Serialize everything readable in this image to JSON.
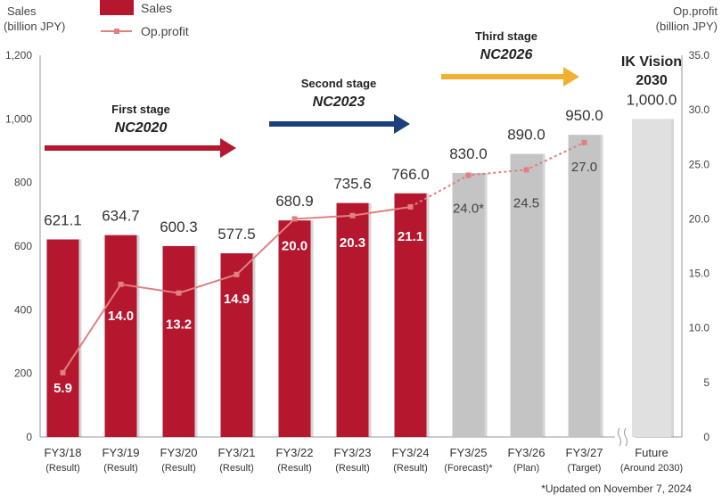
{
  "chart_data": {
    "type": "bar",
    "left_axis_label": [
      "Sales",
      "(billion JPY)"
    ],
    "right_axis_label": [
      "Op.profit",
      "(billion JPY)"
    ],
    "left_ylim": [
      0,
      1200
    ],
    "left_ticks": [
      "0",
      "200",
      "400",
      "600",
      "800",
      "1,000",
      "1,200"
    ],
    "right_ylim": [
      0,
      35
    ],
    "right_ticks": [
      "0",
      "5",
      "10.0",
      "15.0",
      "20.0",
      "25.0",
      "30.0",
      "35.0"
    ],
    "legend": {
      "sales": "Sales",
      "op_profit": "Op.profit"
    },
    "categories": [
      {
        "name": "FY3/18",
        "sub": "(Result)"
      },
      {
        "name": "FY3/19",
        "sub": "(Result)"
      },
      {
        "name": "FY3/20",
        "sub": "(Result)"
      },
      {
        "name": "FY3/21",
        "sub": "(Result)"
      },
      {
        "name": "FY3/22",
        "sub": "(Result)"
      },
      {
        "name": "FY3/23",
        "sub": "(Result)"
      },
      {
        "name": "FY3/24",
        "sub": "(Result)"
      },
      {
        "name": "FY3/25",
        "sub": "(Forecast)*"
      },
      {
        "name": "FY3/26",
        "sub": "(Plan)"
      },
      {
        "name": "FY3/27",
        "sub": "(Target)"
      },
      {
        "name": "Future",
        "sub": "(Around 2030)"
      }
    ],
    "sales": [
      621.1,
      634.7,
      600.3,
      577.5,
      680.9,
      735.6,
      766.0,
      830.0,
      890.0,
      950.0,
      1000.0
    ],
    "sales_labels": [
      "621.1",
      "634.7",
      "600.3",
      "577.5",
      "680.9",
      "735.6",
      "766.0",
      "830.0",
      "890.0",
      "950.0",
      "1,000.0"
    ],
    "op_profit": [
      5.9,
      14.0,
      13.2,
      14.9,
      20.0,
      20.3,
      21.1,
      24.0,
      24.5,
      27.0
    ],
    "op_profit_labels": [
      "5.9",
      "14.0",
      "13.2",
      "14.9",
      "20.0",
      "20.3",
      "21.1",
      "24.0*",
      "24.5",
      "27.0"
    ],
    "stages": [
      {
        "title": "First stage",
        "name": "NC2020",
        "color": "#b5172f"
      },
      {
        "title": "Second stage",
        "name": "NC2023",
        "color": "#1c3f7e"
      },
      {
        "title": "Third stage",
        "name": "NC2026",
        "color": "#f0b030"
      }
    ],
    "vision": [
      "IK Vision",
      "2030"
    ],
    "note": "*Updated on November 7, 2024",
    "colors": {
      "result": "#b5172f",
      "plan": "#c4c4c4",
      "future": "#e0e0e0",
      "line": "#e08080"
    }
  }
}
